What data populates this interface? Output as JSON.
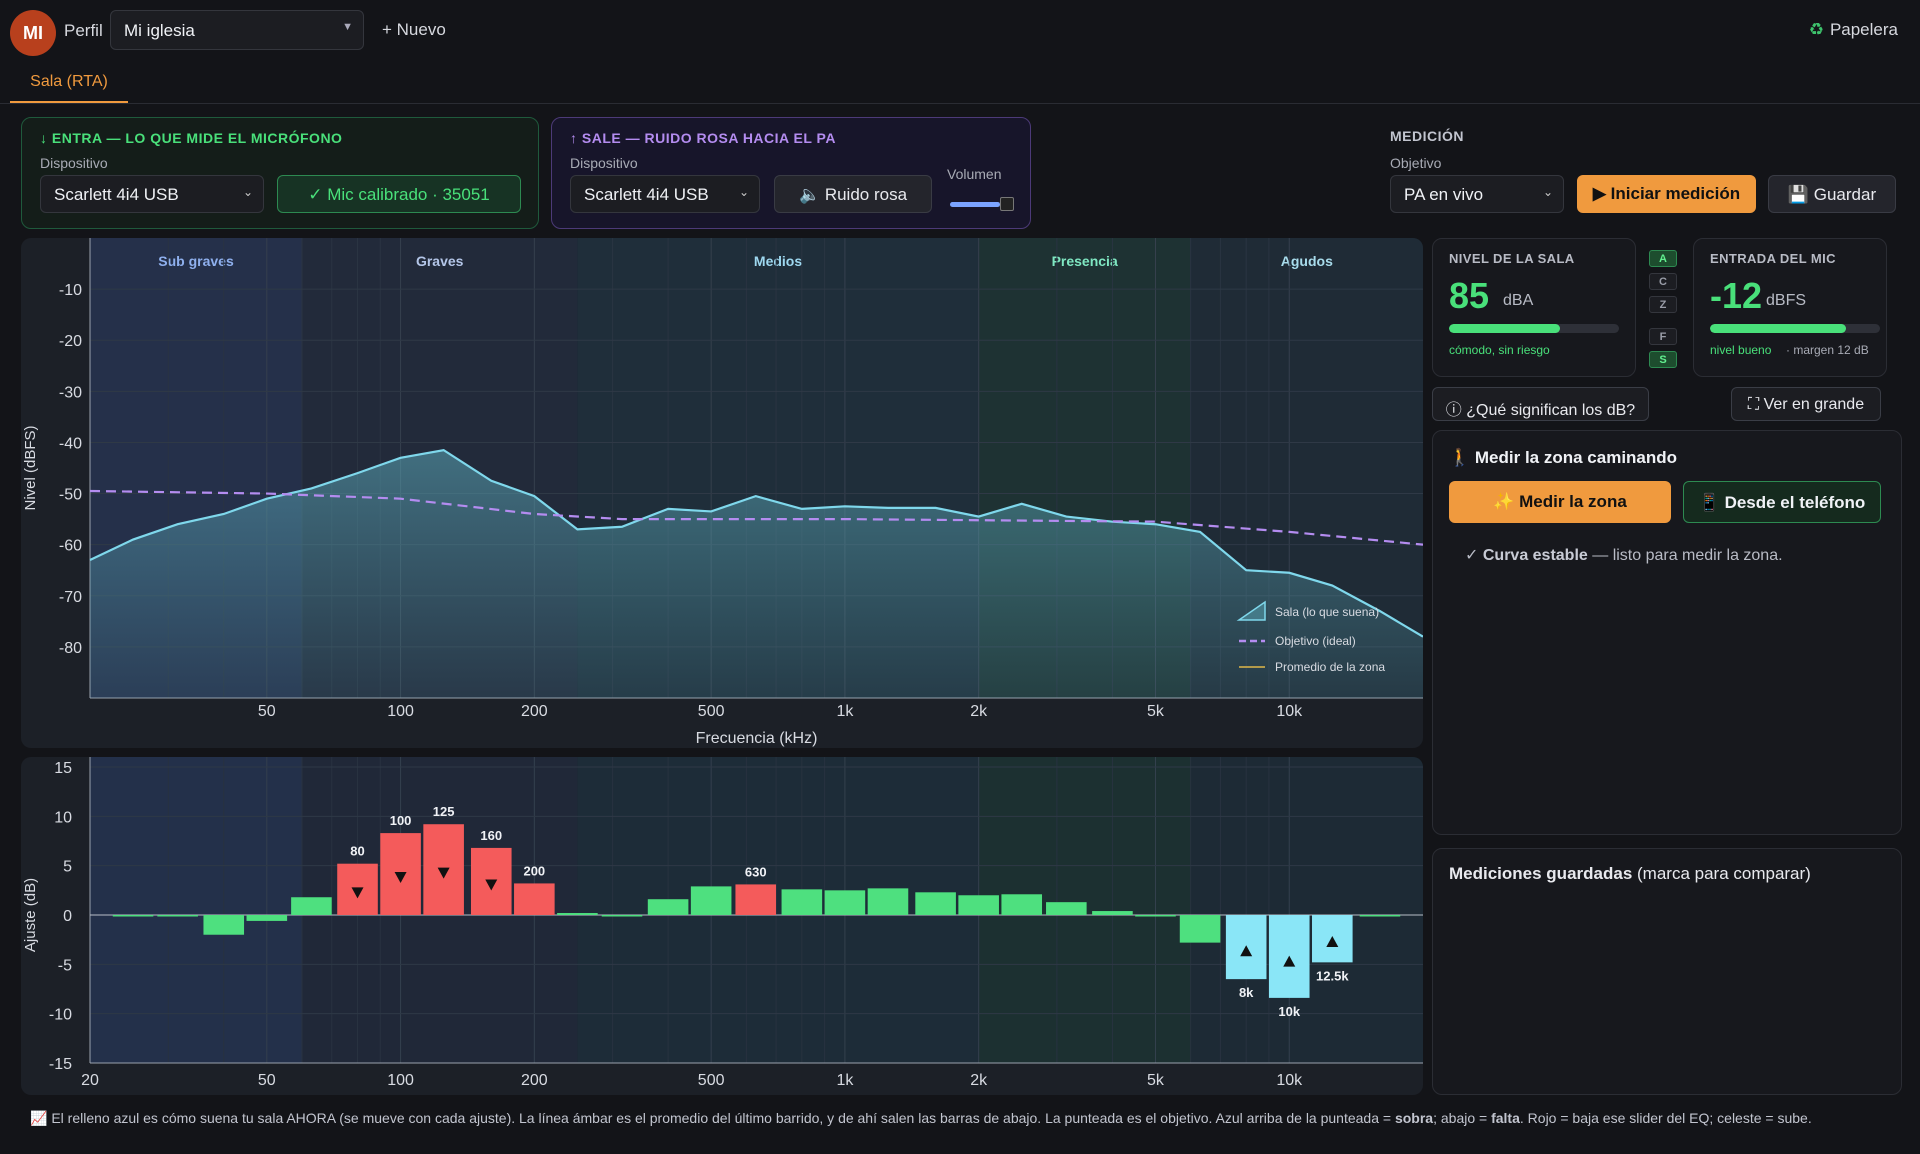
{
  "header": {
    "avatar_initials": "MI",
    "profile_label": "Perfil",
    "church_value": "Mi iglesia",
    "new_label": "Nuevo",
    "trash_label": "Papelera"
  },
  "tabs": [
    {
      "label": "Sala (RTA)",
      "active": true
    }
  ],
  "input_panel": {
    "title": "↓ ENTRA — LO QUE MIDE EL MICRÓFONO",
    "device_label": "Dispositivo",
    "device_value": "Scarlett 4i4 USB",
    "calibrated": "✓ Mic calibrado · 35051"
  },
  "output_panel": {
    "title": "↑ SALE — RUIDO ROSA HACIA EL PA",
    "device_label": "Dispositivo",
    "device_value": "Scarlett 4i4 USB",
    "pink_noise": "Ruido rosa",
    "volume_label": "Volumen",
    "volume_level": 0.78
  },
  "measurement": {
    "title": "MEDICIÓN",
    "target_label": "Objetivo",
    "target_value": "PA en vivo",
    "start_label": "Iniciar medición",
    "save_label": "Guardar"
  },
  "chart_data": [
    {
      "type": "line",
      "bands": [
        "Sub graves",
        "Graves",
        "Medios",
        "Presencia",
        "Agudos"
      ],
      "xlabel": "Frecuencia (kHz)",
      "ylabel": "Nivel (dBFS)",
      "x_scale": "log",
      "xlim": [
        20,
        20000
      ],
      "ylim": [
        -90,
        0
      ],
      "x_ticks": [
        {
          "v": 50,
          "label": "50"
        },
        {
          "v": 100,
          "label": "100"
        },
        {
          "v": 200,
          "label": "200"
        },
        {
          "v": 500,
          "label": "500"
        },
        {
          "v": 1000,
          "label": "1k"
        },
        {
          "v": 2000,
          "label": "2k"
        },
        {
          "v": 5000,
          "label": "5k"
        },
        {
          "v": 10000,
          "label": "10k"
        }
      ],
      "y_ticks": [
        -10,
        -20,
        -30,
        -40,
        -50,
        -60,
        -70,
        -80
      ],
      "series": [
        {
          "name": "Sala (lo que suena)",
          "color": "#7fd8ec",
          "x": [
            20,
            25,
            31.5,
            40,
            50,
            63,
            80,
            100,
            125,
            160,
            200,
            250,
            315,
            400,
            500,
            630,
            800,
            1000,
            1250,
            1600,
            2000,
            2500,
            3150,
            4000,
            5000,
            6300,
            8000,
            10000,
            12500,
            16000,
            20000
          ],
          "y": [
            -63,
            -59,
            -56,
            -54,
            -51,
            -49,
            -46,
            -43,
            -41.5,
            -47.5,
            -50.5,
            -57,
            -56.5,
            -53,
            -53.5,
            -50.5,
            -53,
            -52.5,
            -52.8,
            -52.8,
            -54.5,
            -52,
            -54.5,
            -55.5,
            -56,
            -57.5,
            -65,
            -65.5,
            -68,
            -73,
            -78
          ]
        },
        {
          "name": "Objetivo (ideal)",
          "color": "#b48cf0",
          "x": [
            20,
            50,
            100,
            200,
            315,
            1000,
            5000,
            10000,
            20000
          ],
          "y": [
            -49.5,
            -50,
            -51,
            -54,
            -55,
            -55,
            -55.5,
            -57.5,
            -60
          ]
        },
        {
          "name": "Promedio de la zona",
          "color": "#e0b84a",
          "x": [],
          "y": []
        }
      ]
    },
    {
      "type": "bar",
      "ylabel": "Ajuste (dB)",
      "x_scale": "log",
      "ylim": [
        -15,
        15
      ],
      "y_ticks": [
        15,
        10,
        5,
        0,
        -5,
        -10,
        -15
      ],
      "x_ticks": [
        {
          "v": 20,
          "label": "20"
        },
        {
          "v": 50,
          "label": "50"
        },
        {
          "v": 100,
          "label": "100"
        },
        {
          "v": 200,
          "label": "200"
        },
        {
          "v": 500,
          "label": "500"
        },
        {
          "v": 1000,
          "label": "1k"
        },
        {
          "v": 2000,
          "label": "2k"
        },
        {
          "v": 5000,
          "label": "5k"
        },
        {
          "v": 10000,
          "label": "10k"
        }
      ],
      "categories": [
        25,
        31.5,
        40,
        50,
        63,
        80,
        100,
        125,
        160,
        200,
        250,
        315,
        400,
        500,
        630,
        800,
        1000,
        1250,
        1600,
        2000,
        2500,
        3150,
        4000,
        5000,
        6300,
        8000,
        10000,
        12500,
        16000
      ],
      "values": [
        0,
        0,
        -2,
        -0.6,
        1.8,
        5.2,
        8.3,
        9.2,
        6.8,
        3.2,
        0.2,
        0,
        1.6,
        2.9,
        3.1,
        2.6,
        2.5,
        2.7,
        2.3,
        2,
        2.1,
        1.3,
        0.4,
        0,
        -2.8,
        -6.5,
        -8.4,
        -4.8,
        0
      ],
      "labels": {
        "80": "80",
        "100": "100",
        "125": "125",
        "160": "160",
        "200": "200",
        "630": "630",
        "8000": "8k",
        "10000": "10k",
        "12500": "12.5k"
      },
      "colors": {
        "boost": "#4ee07f",
        "cut": "#f45b5b",
        "lift": "#8ae6f7"
      }
    }
  ],
  "room_level": {
    "title": "NIVEL DE LA SALA",
    "value": "85",
    "unit": "dBA",
    "meter": 0.65,
    "status": "cómodo, sin riesgo"
  },
  "weighting": [
    "A",
    "C",
    "Z",
    "F",
    "S"
  ],
  "mic_input": {
    "title": "ENTRADA DEL MIC",
    "value": "-12",
    "unit": "dBFS",
    "meter": 0.8,
    "status": "nivel bueno",
    "margin": "· margen 12 dB"
  },
  "help_button": "ⓘ ¿Qué significan los dB?",
  "expand_button": "Ver en grande",
  "walk": {
    "title": "Medir la zona caminando",
    "zone_button": "Medir la zona",
    "phone_button": "Desde el teléfono",
    "stable_bold": "Curva estable",
    "stable_rest": " — listo para medir la zona."
  },
  "saved": {
    "title_bold": "Mediciones guardadas",
    "title_rest": " (marca para comparar)"
  },
  "footer_text": "📈 El relleno azul es cómo suena tu sala AHORA (se mueve con cada ajuste). La línea ámbar es el promedio del último barrido, y de ahí salen las barras de abajo. La punteada es el objetivo. Azul arriba de la punteada = sobra; abajo = falta. Rojo = baja ese slider del EQ; celeste = sube."
}
